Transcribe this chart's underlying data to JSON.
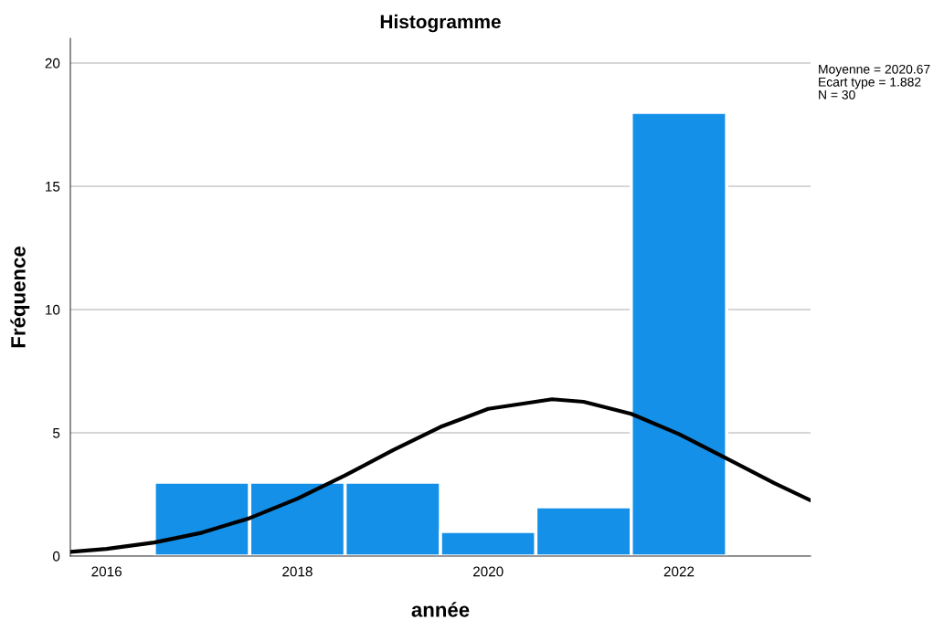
{
  "chart_data": {
    "type": "histogram",
    "title": "Histogramme",
    "xlabel": "année",
    "ylabel": "Fréquence",
    "bins": [
      2016.5,
      2017.5,
      2018.5,
      2019.5,
      2020.5,
      2021.5,
      2022.5
    ],
    "values": [
      3,
      3,
      3,
      1,
      2,
      18
    ],
    "color": "#1490e8",
    "series": [
      {
        "type": "line",
        "color": "#000000",
        "x": [
          2015.62,
          2016,
          2016.5,
          2017,
          2017.5,
          2018,
          2018.5,
          2019,
          2019.5,
          2020,
          2020.67,
          2021,
          2021.5,
          2022,
          2022.5,
          2023,
          2023.38
        ],
        "values": [
          0.17,
          0.29,
          0.55,
          0.95,
          1.54,
          2.33,
          3.27,
          4.29,
          5.24,
          5.97,
          6.36,
          6.26,
          5.77,
          4.95,
          3.96,
          2.96,
          2.26
        ]
      }
    ],
    "xlim": [
      2015.62,
      2023.38
    ],
    "xticks": [
      2016,
      2018,
      2020,
      2022
    ],
    "ylim": [
      0,
      21
    ],
    "yticks": [
      0,
      5,
      10,
      15,
      20
    ],
    "grid": "y",
    "annotations": [
      "Moyenne = 2020.67",
      "Ecart type = 1.882",
      "N = 30"
    ]
  }
}
